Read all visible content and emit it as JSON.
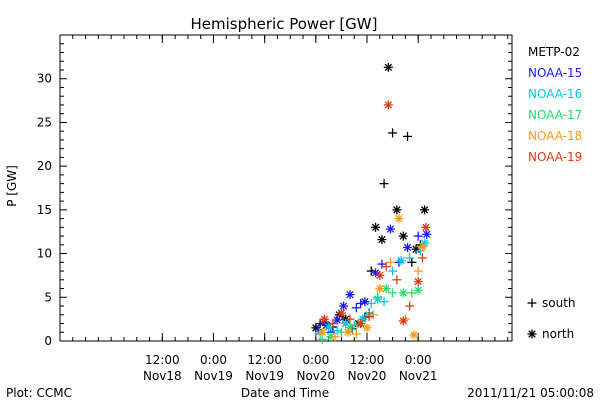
{
  "chart_data": {
    "type": "scatter",
    "title": "Hemispheric Power [GW]",
    "ylabel": "P [GW]",
    "xlabel": "Date and Time",
    "ylim": [
      0,
      35
    ],
    "y_ticks": [
      0,
      5,
      10,
      15,
      20,
      25,
      30
    ],
    "x_range_hours": [
      -12,
      94
    ],
    "x_ticks": [
      {
        "h": 12,
        "time": "12:00",
        "date": "Nov18"
      },
      {
        "h": 24,
        "time": "0:00",
        "date": "Nov19"
      },
      {
        "h": 36,
        "time": "12:00",
        "date": "Nov19"
      },
      {
        "h": 48,
        "time": "0:00",
        "date": "Nov20"
      },
      {
        "h": 60,
        "time": "12:00",
        "date": "Nov20"
      },
      {
        "h": 72,
        "time": "0:00",
        "date": "Nov21"
      }
    ],
    "x_minor_step_hours": 3,
    "legend_placement": "right",
    "marker_legend": [
      {
        "symbol": "+",
        "label": "south"
      },
      {
        "symbol": "*",
        "label": "north"
      }
    ],
    "series": [
      {
        "name": "METP-02",
        "color": "#000000",
        "points": [
          {
            "x": 48.0,
            "y": 1.5,
            "m": "*"
          },
          {
            "x": 49.0,
            "y": 2.0,
            "m": "+"
          },
          {
            "x": 50.5,
            "y": 1.8,
            "m": "*"
          },
          {
            "x": 52.0,
            "y": 1.6,
            "m": "+"
          },
          {
            "x": 53.5,
            "y": 3.0,
            "m": "*"
          },
          {
            "x": 55.0,
            "y": 2.5,
            "m": "*"
          },
          {
            "x": 56.5,
            "y": 1.4,
            "m": "+"
          },
          {
            "x": 58.0,
            "y": 2.0,
            "m": "*"
          },
          {
            "x": 59.5,
            "y": 2.7,
            "m": "+"
          },
          {
            "x": 61.0,
            "y": 8.0,
            "m": "+"
          },
          {
            "x": 62.0,
            "y": 13.0,
            "m": "*"
          },
          {
            "x": 63.5,
            "y": 11.6,
            "m": "*"
          },
          {
            "x": 64.0,
            "y": 18.0,
            "m": "+"
          },
          {
            "x": 65.0,
            "y": 31.3,
            "m": "*"
          },
          {
            "x": 66.0,
            "y": 23.8,
            "m": "+"
          },
          {
            "x": 67.0,
            "y": 15.0,
            "m": "*"
          },
          {
            "x": 68.5,
            "y": 12.0,
            "m": "*"
          },
          {
            "x": 69.5,
            "y": 23.4,
            "m": "+"
          },
          {
            "x": 70.5,
            "y": 9.0,
            "m": "+"
          },
          {
            "x": 71.5,
            "y": 10.5,
            "m": "*"
          },
          {
            "x": 72.5,
            "y": 11.0,
            "m": "+"
          },
          {
            "x": 73.5,
            "y": 15.0,
            "m": "*"
          }
        ]
      },
      {
        "name": "NOAA-15",
        "color": "#1a1aff",
        "points": [
          {
            "x": 48.5,
            "y": 1.3,
            "m": "+"
          },
          {
            "x": 50.0,
            "y": 2.2,
            "m": "*"
          },
          {
            "x": 51.5,
            "y": 1.0,
            "m": "+"
          },
          {
            "x": 53.0,
            "y": 2.4,
            "m": "*"
          },
          {
            "x": 54.5,
            "y": 4.0,
            "m": "*"
          },
          {
            "x": 56.0,
            "y": 5.3,
            "m": "*"
          },
          {
            "x": 57.5,
            "y": 3.8,
            "m": "+"
          },
          {
            "x": 58.5,
            "y": 4.3,
            "m": "+"
          },
          {
            "x": 59.5,
            "y": 4.5,
            "m": "*"
          },
          {
            "x": 60.5,
            "y": 3.2,
            "m": "+"
          },
          {
            "x": 62.0,
            "y": 7.8,
            "m": "*"
          },
          {
            "x": 63.5,
            "y": 8.8,
            "m": "+"
          },
          {
            "x": 65.5,
            "y": 12.8,
            "m": "*"
          },
          {
            "x": 67.5,
            "y": 9.0,
            "m": "+"
          },
          {
            "x": 69.5,
            "y": 10.7,
            "m": "*"
          },
          {
            "x": 72.0,
            "y": 12.0,
            "m": "+"
          },
          {
            "x": 74.0,
            "y": 12.2,
            "m": "*"
          }
        ]
      },
      {
        "name": "NOAA-16",
        "color": "#00c8f0",
        "points": [
          {
            "x": 49.0,
            "y": 0.8,
            "m": "+"
          },
          {
            "x": 51.0,
            "y": 1.6,
            "m": "*"
          },
          {
            "x": 53.0,
            "y": 1.2,
            "m": "+"
          },
          {
            "x": 55.0,
            "y": 2.0,
            "m": "*"
          },
          {
            "x": 57.0,
            "y": 1.8,
            "m": "+"
          },
          {
            "x": 59.0,
            "y": 2.5,
            "m": "*"
          },
          {
            "x": 61.0,
            "y": 4.3,
            "m": "+"
          },
          {
            "x": 62.5,
            "y": 4.8,
            "m": "*"
          },
          {
            "x": 64.0,
            "y": 4.5,
            "m": "+"
          },
          {
            "x": 66.0,
            "y": 8.0,
            "m": "+"
          },
          {
            "x": 68.0,
            "y": 9.2,
            "m": "*"
          },
          {
            "x": 70.0,
            "y": 9.5,
            "m": "+"
          },
          {
            "x": 72.5,
            "y": 10.3,
            "m": "+"
          },
          {
            "x": 73.5,
            "y": 11.2,
            "m": "*"
          }
        ]
      },
      {
        "name": "NOAA-17",
        "color": "#22e06a",
        "points": [
          {
            "x": 49.5,
            "y": 0.2,
            "m": "+"
          },
          {
            "x": 51.5,
            "y": 0.5,
            "m": "*"
          },
          {
            "x": 54.0,
            "y": 1.0,
            "m": "+"
          },
          {
            "x": 56.0,
            "y": 1.5,
            "m": "*"
          },
          {
            "x": 58.0,
            "y": 2.0,
            "m": "+"
          },
          {
            "x": 60.5,
            "y": 3.0,
            "m": "*"
          },
          {
            "x": 62.5,
            "y": 5.0,
            "m": "+"
          },
          {
            "x": 64.5,
            "y": 6.0,
            "m": "*"
          },
          {
            "x": 66.0,
            "y": 5.5,
            "m": "+"
          },
          {
            "x": 68.5,
            "y": 5.5,
            "m": "*"
          },
          {
            "x": 70.5,
            "y": 5.5,
            "m": "+"
          },
          {
            "x": 72.0,
            "y": 5.8,
            "m": "*"
          }
        ]
      },
      {
        "name": "NOAA-18",
        "color": "#ff9a1a",
        "points": [
          {
            "x": 49.5,
            "y": 1.0,
            "m": "*"
          },
          {
            "x": 52.5,
            "y": 0.5,
            "m": "+"
          },
          {
            "x": 55.5,
            "y": 1.0,
            "m": "*"
          },
          {
            "x": 57.5,
            "y": 0.8,
            "m": "+"
          },
          {
            "x": 60.0,
            "y": 1.5,
            "m": "*"
          },
          {
            "x": 61.5,
            "y": 3.0,
            "m": "+"
          },
          {
            "x": 63.0,
            "y": 6.0,
            "m": "*"
          },
          {
            "x": 65.5,
            "y": 9.0,
            "m": "+"
          },
          {
            "x": 67.5,
            "y": 14.0,
            "m": "*"
          },
          {
            "x": 69.0,
            "y": 2.5,
            "m": "+"
          },
          {
            "x": 71.0,
            "y": 0.7,
            "m": "*"
          },
          {
            "x": 72.0,
            "y": 8.0,
            "m": "+"
          },
          {
            "x": 73.0,
            "y": 10.8,
            "m": "*"
          }
        ]
      },
      {
        "name": "NOAA-19",
        "color": "#e03b10",
        "points": [
          {
            "x": 50.0,
            "y": 2.5,
            "m": "*"
          },
          {
            "x": 52.0,
            "y": 2.0,
            "m": "+"
          },
          {
            "x": 54.0,
            "y": 3.2,
            "m": "*"
          },
          {
            "x": 56.0,
            "y": 2.5,
            "m": "+"
          },
          {
            "x": 58.5,
            "y": 2.0,
            "m": "*"
          },
          {
            "x": 60.5,
            "y": 2.8,
            "m": "+"
          },
          {
            "x": 63.0,
            "y": 7.5,
            "m": "*"
          },
          {
            "x": 64.5,
            "y": 8.5,
            "m": "+"
          },
          {
            "x": 65.0,
            "y": 27.0,
            "m": "*"
          },
          {
            "x": 67.0,
            "y": 7.0,
            "m": "+"
          },
          {
            "x": 68.5,
            "y": 2.3,
            "m": "*"
          },
          {
            "x": 70.0,
            "y": 4.0,
            "m": "+"
          },
          {
            "x": 72.0,
            "y": 6.8,
            "m": "*"
          },
          {
            "x": 73.0,
            "y": 9.5,
            "m": "+"
          },
          {
            "x": 73.8,
            "y": 13.0,
            "m": "*"
          }
        ]
      }
    ]
  },
  "footer": {
    "left": "Plot: CCMC",
    "right": "2011/11/21 05:00:08"
  }
}
